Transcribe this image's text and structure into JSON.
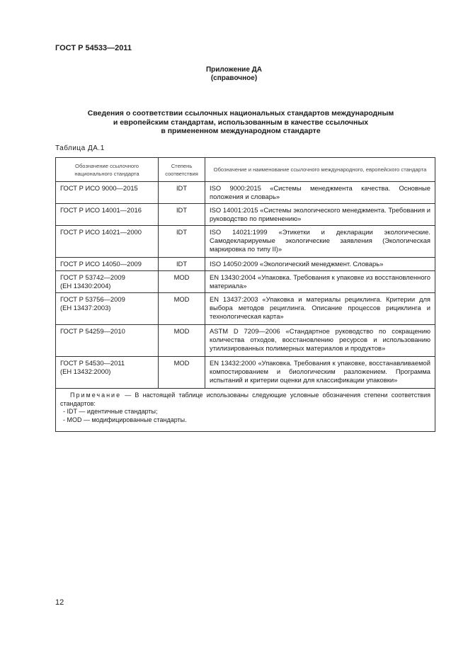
{
  "header": {
    "doc_code": "ГОСТ Р 54533—2011"
  },
  "appendix": {
    "title": "Приложение ДА",
    "subtitle": "(справочное)"
  },
  "title_lines": [
    "Сведения о соответствии ссылочных национальных стандартов международным",
    "и европейским стандартам, использованным в качестве ссылочных",
    "в примененном международном стандарте"
  ],
  "table": {
    "label": "Таблица ДА.1",
    "columns": [
      "Обозначение ссылочного национального стандарта",
      "Степень соответствия",
      "Обозначение и наименование ссылочного международного, европейского стандарта"
    ],
    "rows": [
      {
        "national": "ГОСТ Р ИСО 9000—2015",
        "degree": "IDT",
        "international": "ISO 9000:2015 «Системы менеджмента качества. Основные положения и словарь»"
      },
      {
        "national": "ГОСТ Р ИСО 14001—2016",
        "degree": "IDT",
        "international": "ISO 14001:2015 «Системы экологического менеджмента. Требования и руководство по применению»"
      },
      {
        "national": "ГОСТ Р ИСО 14021—2000",
        "degree": "IDT",
        "international": "ISO 14021:1999 «Этикетки и декларации экологические. Самодекларируемые экологические заявления (Экологическая маркировка по типу II)»"
      },
      {
        "national": "ГОСТ Р ИСО 14050—2009",
        "degree": "IDT",
        "international": "ISO 14050:2009 «Экологический менеджмент. Словарь»"
      },
      {
        "national": "ГОСТ Р 53742—2009",
        "national_sub": "(ЕН 13430:2004)",
        "degree": "MOD",
        "international": "EN 13430:2004 «Упаковка. Требования к упаковке из восстановленного материала»"
      },
      {
        "national": "ГОСТ Р 53756—2009",
        "national_sub": "(ЕН 13437:2003)",
        "degree": "MOD",
        "international": "EN 13437:2003 «Упаковка и материалы рециклинга. Критерии для выбора методов рециглинга. Описание процессов рициклинга и технологическая карта»"
      },
      {
        "national": "ГОСТ Р 54259—2010",
        "degree": "MOD",
        "international": "ASTM D 7209—2006 «Стандартное руководство по сокращению количества отходов, восстановлению ресурсов и использованию утилизированных полимерных материалов и продуктов»"
      },
      {
        "national": "ГОСТ Р 54530—2011",
        "national_sub": "(ЕН 13432:2000)",
        "degree": "MOD",
        "international": "EN 13432:2000 «Упаковка. Требования к упаковке, восстанавливаемой компостированием и биологическим разложением. Программа испытаний и критерии оценки для классификации упаковки»"
      }
    ],
    "note": {
      "label": "Примечание",
      "text": " — В настоящей таблице использованы следующие условные обозначения степени соответствия стандартов:",
      "items": [
        "- IDT — идентичные стандарты;",
        "- MOD — модифицированные стандарты."
      ]
    }
  },
  "page_number": "12"
}
